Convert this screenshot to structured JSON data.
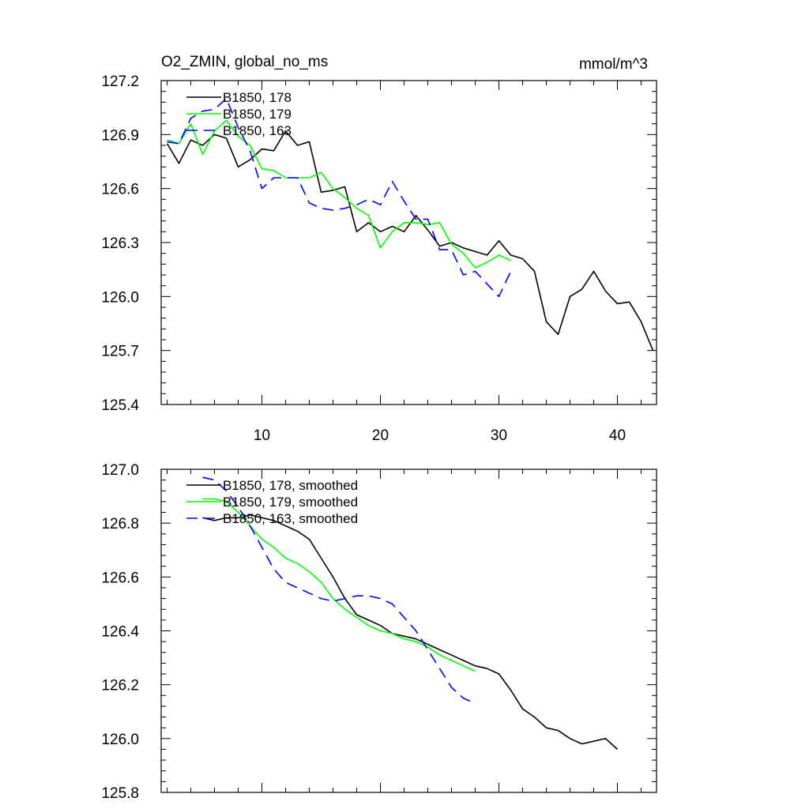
{
  "chart_data": [
    {
      "type": "line",
      "title": "O2_ZMIN, global_no_ms",
      "units": "mmol/m^3",
      "xlim": [
        1.5,
        43.3
      ],
      "ylim": [
        125.4,
        127.2
      ],
      "xticks": [
        10,
        20,
        30,
        40
      ],
      "xtick_labels": [
        "10",
        "20",
        "30",
        "40"
      ],
      "yticks": [
        125.4,
        125.7,
        126.0,
        126.3,
        126.6,
        126.9,
        127.2
      ],
      "ytick_labels": [
        "125.4",
        "125.7",
        "126.0",
        "126.3",
        "126.6",
        "126.9",
        "127.2"
      ],
      "legend_position": "top-left",
      "series": [
        {
          "name": "B1850, 178",
          "color": "#000000",
          "dash": "solid",
          "x": [
            2,
            3,
            4,
            5,
            6,
            7,
            8,
            9,
            10,
            11,
            12,
            13,
            14,
            15,
            16,
            17,
            18,
            19,
            20,
            21,
            22,
            23,
            24,
            25,
            26,
            27,
            28,
            29,
            30,
            31,
            32,
            33,
            34,
            35,
            36,
            37,
            38,
            39,
            40,
            41,
            42,
            43
          ],
          "values": [
            126.85,
            126.74,
            126.87,
            126.84,
            126.9,
            126.88,
            126.72,
            126.76,
            126.82,
            126.81,
            126.92,
            126.84,
            126.86,
            126.58,
            126.59,
            126.61,
            126.36,
            126.41,
            126.36,
            126.39,
            126.36,
            126.45,
            126.37,
            126.28,
            126.3,
            126.27,
            126.25,
            126.23,
            126.31,
            126.23,
            126.21,
            126.14,
            125.86,
            125.79,
            126.0,
            126.04,
            126.14,
            126.03,
            125.96,
            125.97,
            125.86,
            125.7
          ]
        },
        {
          "name": "B1850, 179",
          "color": "#00ff00",
          "dash": "solid",
          "x": [
            2,
            3,
            4,
            5,
            6,
            7,
            8,
            9,
            10,
            11,
            12,
            13,
            14,
            15,
            16,
            17,
            18,
            19,
            20,
            21,
            22,
            23,
            24,
            25,
            26,
            27,
            28,
            29,
            30,
            31
          ],
          "values": [
            126.87,
            126.85,
            126.96,
            126.79,
            126.92,
            126.98,
            126.89,
            126.84,
            126.71,
            126.7,
            126.66,
            126.66,
            126.66,
            126.69,
            126.6,
            126.55,
            126.49,
            126.45,
            126.27,
            126.36,
            126.41,
            126.41,
            126.4,
            126.41,
            126.29,
            126.24,
            126.16,
            126.19,
            126.23,
            126.2
          ]
        },
        {
          "name": "B1850, 163",
          "color": "#0000ff",
          "dash": "dashed",
          "x": [
            2,
            3,
            4,
            5,
            6,
            7,
            8,
            9,
            10,
            11,
            12,
            13,
            14,
            15,
            16,
            17,
            18,
            19,
            20,
            21,
            22,
            23,
            24,
            25,
            26,
            27,
            28,
            29,
            30,
            31
          ],
          "values": [
            126.86,
            126.85,
            126.99,
            127.03,
            127.04,
            127.1,
            126.94,
            126.81,
            126.6,
            126.66,
            126.66,
            126.66,
            126.52,
            126.49,
            126.48,
            126.49,
            126.51,
            126.54,
            126.51,
            126.64,
            126.53,
            126.43,
            126.43,
            126.26,
            126.26,
            126.12,
            126.14,
            126.07,
            126.0,
            126.14
          ]
        }
      ]
    },
    {
      "type": "line",
      "xlim": [
        1.5,
        43.3
      ],
      "ylim": [
        125.8,
        127.0
      ],
      "xticks": [
        10,
        20,
        30,
        40
      ],
      "yticks": [
        125.8,
        126.0,
        126.2,
        126.4,
        126.6,
        126.8,
        127.0
      ],
      "ytick_labels": [
        "125.8",
        "126.0",
        "126.2",
        "126.4",
        "126.6",
        "126.8",
        "127.0"
      ],
      "legend_position": "top-left",
      "series": [
        {
          "name": "B1850, 178, smoothed",
          "color": "#000000",
          "dash": "solid",
          "x": [
            5,
            6,
            7,
            8,
            9,
            10,
            11,
            12,
            13,
            14,
            15,
            16,
            17,
            18,
            19,
            20,
            21,
            22,
            23,
            24,
            25,
            26,
            27,
            28,
            29,
            30,
            31,
            32,
            33,
            34,
            35,
            36,
            37,
            38,
            39,
            40
          ],
          "values": [
            126.82,
            126.81,
            126.82,
            126.82,
            126.83,
            126.82,
            126.81,
            126.79,
            126.77,
            126.74,
            126.67,
            126.6,
            126.52,
            126.46,
            126.44,
            126.42,
            126.39,
            126.38,
            126.37,
            126.35,
            126.33,
            126.31,
            126.29,
            126.27,
            126.26,
            126.24,
            126.18,
            126.11,
            126.08,
            126.04,
            126.03,
            126.0,
            125.98,
            125.99,
            126.0,
            125.96
          ]
        },
        {
          "name": "B1850, 179, smoothed",
          "color": "#00ff00",
          "dash": "solid",
          "x": [
            5,
            6,
            7,
            8,
            9,
            10,
            11,
            12,
            13,
            14,
            15,
            16,
            17,
            18,
            19,
            20,
            21,
            22,
            23,
            24,
            25,
            26,
            27,
            28
          ],
          "values": [
            126.89,
            126.89,
            126.88,
            126.84,
            126.79,
            126.74,
            126.71,
            126.67,
            126.65,
            126.62,
            126.58,
            126.52,
            126.48,
            126.45,
            126.42,
            126.4,
            126.39,
            126.37,
            126.36,
            126.34,
            126.31,
            126.29,
            126.27,
            126.25
          ]
        },
        {
          "name": "B1850, 163, smoothed",
          "color": "#0000ff",
          "dash": "dashed",
          "x": [
            5,
            6,
            7,
            8,
            9,
            10,
            11,
            12,
            13,
            14,
            15,
            16,
            17,
            18,
            19,
            20,
            21,
            22,
            23,
            24,
            25,
            26,
            27,
            28
          ],
          "values": [
            126.97,
            126.96,
            126.92,
            126.86,
            126.79,
            126.71,
            126.63,
            126.58,
            126.56,
            126.54,
            126.52,
            126.51,
            126.52,
            126.53,
            126.53,
            126.52,
            126.5,
            126.45,
            126.4,
            126.33,
            126.26,
            126.19,
            126.15,
            126.13
          ]
        }
      ]
    }
  ]
}
